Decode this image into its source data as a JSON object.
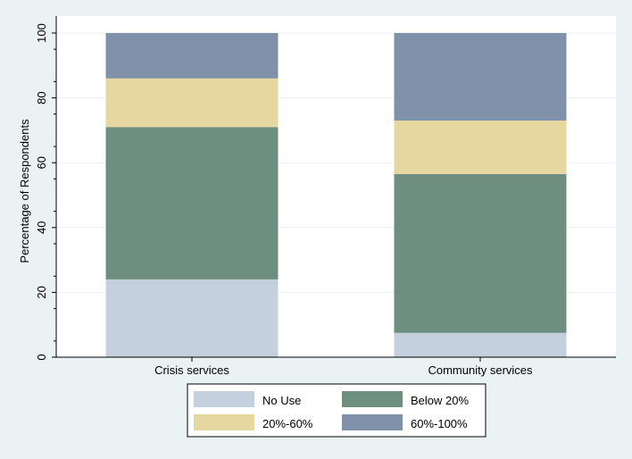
{
  "chart_data": {
    "type": "bar",
    "stacked": true,
    "title": "",
    "xlabel": "",
    "ylabel": "Percentage of Respondents",
    "ylim": [
      0,
      100
    ],
    "yticks": [
      0,
      20,
      40,
      60,
      80,
      100
    ],
    "grid": true,
    "categories": [
      "Crisis services",
      "Community services"
    ],
    "series": [
      {
        "name": "No Use",
        "values": [
          24,
          7.5
        ],
        "color": "#c5d0de"
      },
      {
        "name": "Below 20%",
        "values": [
          47,
          49
        ],
        "color": "#6e8e80"
      },
      {
        "name": "20%-60%",
        "values": [
          15,
          16.5
        ],
        "color": "#e6d7a0"
      },
      {
        "name": "60%-100%",
        "values": [
          14,
          27
        ],
        "color": "#7f92a9"
      }
    ],
    "legend_position": "bottom"
  }
}
